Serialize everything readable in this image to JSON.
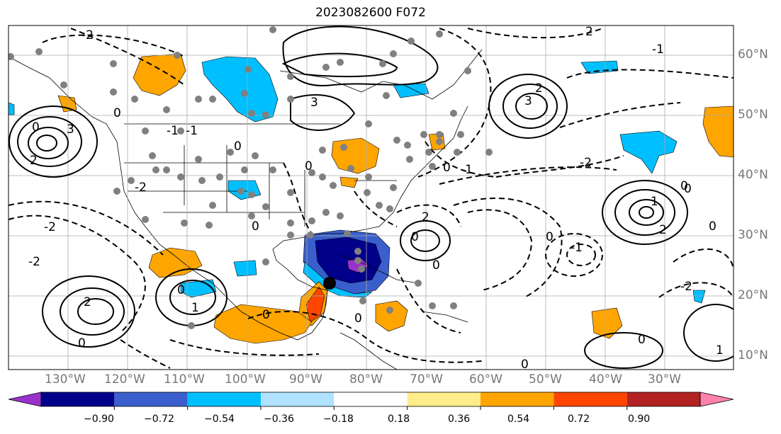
{
  "title": "2023082600 F072",
  "lon_labels": [
    "130°W",
    "120°W",
    "110°W",
    "100°W",
    "90°W",
    "80°W",
    "70°W",
    "60°W",
    "50°W",
    "40°W",
    "30°W"
  ],
  "lat_labels": [
    "60°N",
    "50°N",
    "40°N",
    "30°N",
    "20°N",
    "10°N"
  ],
  "colorbar": {
    "colors": [
      "#9932cc",
      "#00008b",
      "#3a5fcd",
      "#00bfff",
      "#b0e2ff",
      "#ffffff",
      "#ffec8b",
      "#ffa500",
      "#ff4500",
      "#b22222",
      "#ff82ab"
    ],
    "tick_labels": [
      "−0.90",
      "−0.72",
      "−0.54",
      "−0.36",
      "−0.18",
      "0.18",
      "0.36",
      "0.54",
      "0.72",
      "0.90"
    ]
  },
  "contour_labels": {
    "pos": [
      "2",
      "3",
      "2",
      "1",
      "2",
      "3",
      "2",
      "1",
      "2",
      "1",
      "3",
      "2"
    ],
    "neg": [
      "-2",
      "-1",
      "-2",
      "-1",
      "-1",
      "-2",
      "-2",
      "-1",
      "-1",
      "-2",
      "-2",
      "0",
      "0",
      "0",
      "0",
      "0",
      "0",
      "0",
      "0",
      "0",
      "0",
      "0",
      "0",
      "0",
      "0",
      "0",
      "0",
      "0",
      "0"
    ]
  }
}
